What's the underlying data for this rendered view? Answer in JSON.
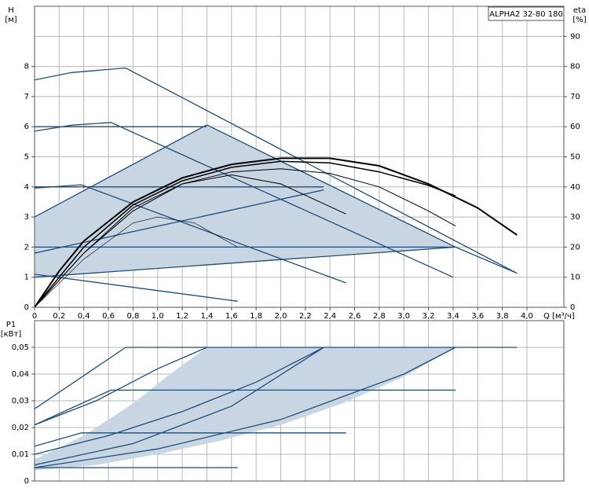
{
  "chart_data": [
    {
      "type": "line",
      "title": "ALPHA2 32-80 180",
      "ylabel": [
        "H",
        "[м]"
      ],
      "y2label": [
        "eta",
        "[%]"
      ],
      "xlabel": "Q [м³/ч]",
      "xlim": [
        0,
        4.3
      ],
      "ylim": [
        0,
        10
      ],
      "y2lim": [
        0,
        100
      ],
      "grid": true,
      "xticks": [
        0,
        {
          "value": 0.2,
          "label": "0,2"
        },
        {
          "value": 0.4,
          "label": "0,4"
        },
        {
          "value": 0.6,
          "label": "0,6"
        },
        {
          "value": 0.8,
          "label": "0,8"
        },
        {
          "value": 1.0,
          "label": "1,0"
        },
        {
          "value": 1.2,
          "label": "1,2"
        },
        {
          "value": 1.4,
          "label": "1,4"
        },
        {
          "value": 1.6,
          "label": "1,6"
        },
        {
          "value": 1.8,
          "label": "1,8"
        },
        {
          "value": 2.0,
          "label": "2,0"
        },
        {
          "value": 2.2,
          "label": "2,2"
        },
        {
          "value": 2.4,
          "label": "2,4"
        },
        {
          "value": 2.6,
          "label": "2,6"
        },
        {
          "value": 2.8,
          "label": "2,8"
        },
        {
          "value": 3.0,
          "label": "3,0"
        },
        {
          "value": 3.2,
          "label": "3,2"
        },
        {
          "value": 3.4,
          "label": "3,4"
        },
        {
          "value": 3.6,
          "label": "3,6"
        },
        {
          "value": 3.8,
          "label": "3,8"
        },
        {
          "value": 4.0,
          "label": "4,0"
        }
      ],
      "yticks": [
        0,
        1,
        2,
        3,
        4,
        5,
        6,
        7,
        8
      ],
      "y2ticks": [
        0,
        10,
        20,
        30,
        40,
        50,
        60,
        70,
        80,
        90
      ],
      "series": [
        {
          "type": "area",
          "color": "#c8d5e3",
          "x": [
            0,
            0,
            1.4,
            3.42
          ],
          "values": [
            1.0,
            3.0,
            6.06,
            2.0
          ]
        },
        {
          "color": "#1f4e79",
          "x": [
            0,
            0.3,
            0.74,
            3.92
          ],
          "values": [
            7.55,
            7.8,
            7.95,
            1.13
          ]
        },
        {
          "color": "#1f4e79",
          "x": [
            0,
            0.3,
            0.62,
            3.4
          ],
          "values": [
            5.85,
            6.05,
            6.14,
            1.0
          ]
        },
        {
          "color": "#1f4e79",
          "x": [
            0,
            0.38,
            2.53
          ],
          "values": [
            3.96,
            4.07,
            0.81
          ]
        },
        {
          "color": "#1f4e79",
          "x": [
            0,
            1.65
          ],
          "values": [
            1.1,
            0.2
          ]
        },
        {
          "color": "#1f4e79",
          "x": [
            0,
            1.4
          ],
          "values": [
            6,
            6
          ]
        },
        {
          "color": "#1f4e79",
          "x": [
            0,
            2.35
          ],
          "values": [
            4,
            4
          ]
        },
        {
          "color": "#1f4e79",
          "x": [
            0,
            3.42
          ],
          "values": [
            2,
            2
          ]
        },
        {
          "color": "#1f4e79",
          "x": [
            0,
            1.4
          ],
          "values": [
            3,
            6.06
          ]
        },
        {
          "color": "#1f4e79",
          "x": [
            0,
            2.35
          ],
          "values": [
            1.8,
            3.9
          ]
        },
        {
          "color": "#1f4e79",
          "x": [
            0,
            3.42
          ],
          "values": [
            1.0,
            2.0
          ]
        },
        {
          "color": "#1f4e79",
          "x": [
            1.4,
            3.42,
            3.92
          ],
          "values": [
            6.06,
            2.0,
            1.13
          ]
        },
        {
          "color": "#000000",
          "axis": "y2",
          "line_width": 2,
          "x": [
            0,
            0.2,
            0.4,
            0.8,
            1.2,
            1.6,
            2.0,
            2.4,
            2.8,
            3.2,
            3.6,
            3.92
          ],
          "values": [
            0,
            12,
            22,
            35,
            43,
            47.5,
            49.5,
            49.5,
            47,
            41,
            33,
            24
          ]
        },
        {
          "color": "#000000",
          "axis": "y2",
          "line_width": 1.5,
          "x": [
            0,
            0.4,
            0.8,
            1.2,
            1.6,
            2.0,
            2.4,
            2.8,
            3.2,
            3.42
          ],
          "values": [
            0,
            20,
            34,
            42,
            46.5,
            48.5,
            48,
            45,
            40.5,
            37
          ]
        },
        {
          "color": "#000000",
          "axis": "y2",
          "line_width": 1,
          "x": [
            0,
            0.4,
            0.8,
            1.2,
            1.6,
            2.0,
            2.4,
            2.8,
            3.2,
            3.42
          ],
          "values": [
            0,
            18,
            32,
            41,
            45,
            46,
            44.5,
            40,
            32,
            27
          ]
        },
        {
          "color": "#000000",
          "axis": "y2",
          "line_width": 1,
          "x": [
            0,
            0.4,
            0.8,
            1.2,
            1.6,
            2.0,
            2.53
          ],
          "values": [
            0,
            18,
            33,
            41,
            44,
            41,
            31
          ]
        },
        {
          "color": "#000000",
          "axis": "y2",
          "line_width": 0.6,
          "x": [
            0,
            0.4,
            0.8,
            1.0,
            1.3,
            1.65
          ],
          "values": [
            0,
            16,
            28,
            30,
            28,
            20
          ]
        }
      ]
    },
    {
      "type": "line",
      "ylabel": [
        "P1",
        "[кВт]"
      ],
      "xlim": [
        0,
        4.3
      ],
      "ylim": [
        0,
        0.06
      ],
      "grid": true,
      "yticks": [
        0,
        {
          "value": 0.01,
          "label": "0,01"
        },
        {
          "value": 0.02,
          "label": "0,02"
        },
        {
          "value": 0.03,
          "label": "0,03"
        },
        {
          "value": 0.04,
          "label": "0,04"
        },
        {
          "value": 0.05,
          "label": "0,05"
        }
      ],
      "series": [
        {
          "type": "area",
          "color": "#c8d5e3",
          "x": [
            0,
            0.4,
            0.8,
            1.1,
            1.4,
            3.42,
            3.0,
            2.5,
            2.0,
            1.5,
            1.0,
            0.5,
            0
          ],
          "values": [
            0.008,
            0.017,
            0.029,
            0.04,
            0.05,
            0.05,
            0.039,
            0.029,
            0.021,
            0.015,
            0.01,
            0.006,
            0.004
          ]
        },
        {
          "color": "#1f4e79",
          "x": [
            0,
            0.74,
            3.92
          ],
          "values": [
            0.027,
            0.05,
            0.05
          ]
        },
        {
          "color": "#1f4e79",
          "x": [
            0,
            0.62,
            3.42
          ],
          "values": [
            0.021,
            0.034,
            0.034
          ]
        },
        {
          "color": "#1f4e79",
          "x": [
            0,
            0.38,
            2.53
          ],
          "values": [
            0.013,
            0.018,
            0.018
          ]
        },
        {
          "color": "#1f4e79",
          "x": [
            0,
            1.65
          ],
          "values": [
            0.005,
            0.005
          ]
        },
        {
          "color": "#1f4e79",
          "x": [
            0,
            0.5,
            1.0,
            1.4
          ],
          "values": [
            0.021,
            0.03,
            0.042,
            0.05
          ]
        },
        {
          "color": "#1f4e79",
          "x": [
            0,
            0.6,
            1.2,
            1.8,
            2.35
          ],
          "values": [
            0.01,
            0.017,
            0.026,
            0.037,
            0.05
          ]
        },
        {
          "color": "#1f4e79",
          "x": [
            0,
            0.8,
            1.6,
            2.35
          ],
          "values": [
            0.006,
            0.014,
            0.028,
            0.05
          ]
        },
        {
          "color": "#1f4e79",
          "x": [
            0,
            1.0,
            2.0,
            3.0,
            3.42
          ],
          "values": [
            0.005,
            0.012,
            0.023,
            0.04,
            0.05
          ]
        }
      ]
    }
  ]
}
